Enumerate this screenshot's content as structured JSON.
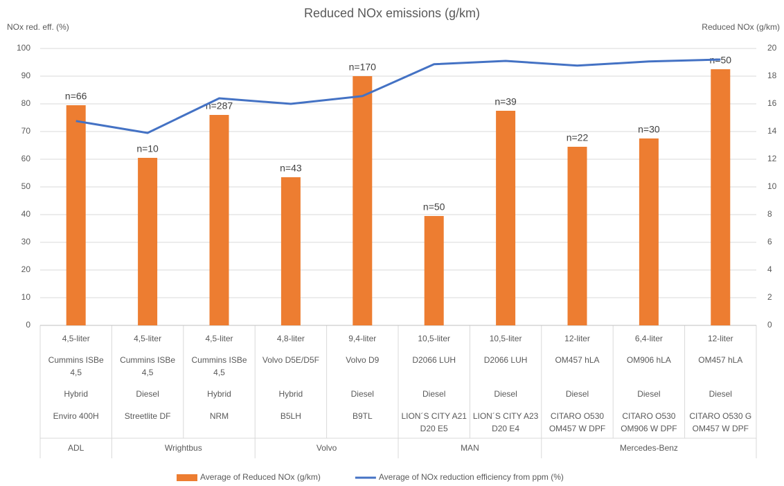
{
  "chart_data": {
    "type": "bar-line",
    "title": "Reduced NOx emissions (g/km)",
    "y_label": "NOx red. eff. (%)",
    "y2_label": "Reduced NOx (g/km)",
    "categories": [
      {
        "size": "4,5-liter",
        "engine": "Cummins ISBe 4,5",
        "fuel": "Hybrid",
        "model": "Enviro 400H",
        "maker": "ADL"
      },
      {
        "size": "4,5-liter",
        "engine": "Cummins ISBe 4,5",
        "fuel": "Diesel",
        "model": "Streetlite DF",
        "maker": "Wrightbus"
      },
      {
        "size": "4,5-liter",
        "engine": "Cummins ISBe 4,5",
        "fuel": "Hybrid",
        "model": "NRM",
        "maker": "Wrightbus"
      },
      {
        "size": "4,8-liter",
        "engine": "Volvo D5E/D5F",
        "fuel": "Hybrid",
        "model": "B5LH",
        "maker": "Volvo"
      },
      {
        "size": "9,4-liter",
        "engine": "Volvo D9",
        "fuel": "Diesel",
        "model": "B9TL",
        "maker": "Volvo"
      },
      {
        "size": "10,5-liter",
        "engine": "D2066 LUH",
        "fuel": "Diesel",
        "model": "LION´S CITY A21 D20 E5",
        "maker": "MAN"
      },
      {
        "size": "10,5-liter",
        "engine": "D2066 LUH",
        "fuel": "Diesel",
        "model": "LION´S CITY A23 D20 E4",
        "maker": "MAN"
      },
      {
        "size": "12-liter",
        "engine": "OM457 hLA",
        "fuel": "Diesel",
        "model": "CITARO O530 OM457 W DPF",
        "maker": "Mercedes-Benz"
      },
      {
        "size": "6,4-liter",
        "engine": "OM906 hLA",
        "fuel": "Diesel",
        "model": "CITARO O530 OM906 W DPF",
        "maker": "Mercedes-Benz"
      },
      {
        "size": "12-liter",
        "engine": "OM457 hLA",
        "fuel": "Diesel",
        "model": "CITARO O530 G OM457 W DPF",
        "maker": "Mercedes-Benz"
      }
    ],
    "series": [
      {
        "name": "Average of Reduced NOx (g/km)",
        "type": "bar",
        "axis": "y2",
        "color": "#ed7d31",
        "values": [
          15.9,
          12.1,
          15.2,
          10.7,
          18.0,
          7.9,
          15.5,
          12.9,
          13.5,
          18.5
        ],
        "annotations": [
          "n=66",
          "n=10",
          "n=287",
          "n=43",
          "n=170",
          "n=50",
          "n=39",
          "n=22",
          "n=30",
          "n=50"
        ]
      },
      {
        "name": "Average of NOx reduction efficiency from ppm (%)",
        "type": "line",
        "axis": "y",
        "color": "#4472c4",
        "values": [
          73.8,
          69.5,
          82,
          80,
          82.8,
          94.3,
          95.5,
          93.8,
          95.3,
          96
        ]
      }
    ],
    "ylim": [
      0,
      100
    ],
    "yticks": [
      0,
      10,
      20,
      30,
      40,
      50,
      60,
      70,
      80,
      90,
      100
    ],
    "y2lim": [
      0,
      20
    ],
    "y2ticks": [
      0,
      2,
      4,
      6,
      8,
      10,
      12,
      14,
      16,
      18,
      20
    ],
    "grid": true,
    "legend": "bottom"
  }
}
